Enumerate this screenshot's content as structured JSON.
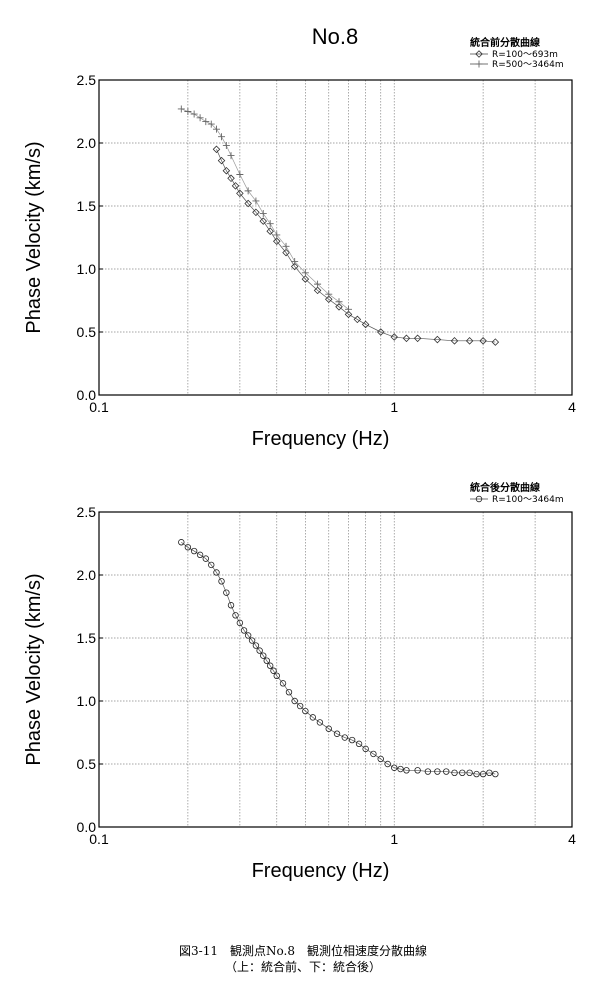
{
  "chart_data": [
    {
      "type": "scatter",
      "title": "No.8",
      "xlabel": "Frequency (Hz)",
      "ylabel": "Phase Velocity (km/s)",
      "xscale": "log",
      "xlim": [
        0.1,
        4
      ],
      "ylim": [
        0.0,
        2.5
      ],
      "xticks": [
        "0.1",
        "1",
        "4"
      ],
      "yticks": [
        "0.0",
        "0.5",
        "1.0",
        "1.5",
        "2.0",
        "2.5"
      ],
      "grid": true,
      "legend_title": "統合前分散曲線",
      "legend_position": "top-right",
      "series": [
        {
          "name": "R=100～693m",
          "marker": "diamond",
          "x": [
            0.25,
            0.26,
            0.27,
            0.28,
            0.29,
            0.3,
            0.32,
            0.34,
            0.36,
            0.38,
            0.4,
            0.43,
            0.46,
            0.5,
            0.55,
            0.6,
            0.65,
            0.7,
            0.75,
            0.8,
            0.9,
            1.0,
            1.1,
            1.2,
            1.4,
            1.6,
            1.8,
            2.0,
            2.2
          ],
          "y": [
            1.95,
            1.86,
            1.78,
            1.72,
            1.66,
            1.6,
            1.52,
            1.45,
            1.38,
            1.3,
            1.22,
            1.13,
            1.02,
            0.92,
            0.83,
            0.76,
            0.7,
            0.64,
            0.6,
            0.56,
            0.5,
            0.46,
            0.45,
            0.45,
            0.44,
            0.43,
            0.43,
            0.43,
            0.42
          ]
        },
        {
          "name": "R=500～3464m",
          "marker": "plus",
          "x": [
            0.19,
            0.2,
            0.21,
            0.22,
            0.23,
            0.24,
            0.25,
            0.26,
            0.27,
            0.28,
            0.3,
            0.32,
            0.34,
            0.36,
            0.38,
            0.4,
            0.43,
            0.46,
            0.5,
            0.55,
            0.6,
            0.65,
            0.7
          ],
          "y": [
            2.27,
            2.25,
            2.23,
            2.2,
            2.17,
            2.15,
            2.11,
            2.05,
            1.98,
            1.9,
            1.75,
            1.62,
            1.54,
            1.44,
            1.36,
            1.27,
            1.18,
            1.06,
            0.97,
            0.88,
            0.8,
            0.74,
            0.68
          ]
        }
      ]
    },
    {
      "type": "scatter",
      "title": "",
      "xlabel": "Frequency (Hz)",
      "ylabel": "Phase Velocity (km/s)",
      "xscale": "log",
      "xlim": [
        0.1,
        4
      ],
      "ylim": [
        0.0,
        2.5
      ],
      "xticks": [
        "0.1",
        "1",
        "4"
      ],
      "yticks": [
        "0.0",
        "0.5",
        "1.0",
        "1.5",
        "2.0",
        "2.5"
      ],
      "grid": true,
      "legend_title": "統合後分散曲線",
      "legend_position": "top-right",
      "series": [
        {
          "name": "R=100～3464m",
          "marker": "circle",
          "x": [
            0.19,
            0.2,
            0.21,
            0.22,
            0.23,
            0.24,
            0.25,
            0.26,
            0.27,
            0.28,
            0.29,
            0.3,
            0.31,
            0.32,
            0.33,
            0.34,
            0.35,
            0.36,
            0.37,
            0.38,
            0.39,
            0.4,
            0.42,
            0.44,
            0.46,
            0.48,
            0.5,
            0.53,
            0.56,
            0.6,
            0.64,
            0.68,
            0.72,
            0.76,
            0.8,
            0.85,
            0.9,
            0.95,
            1.0,
            1.05,
            1.1,
            1.2,
            1.3,
            1.4,
            1.5,
            1.6,
            1.7,
            1.8,
            1.9,
            2.0,
            2.1,
            2.2
          ],
          "y": [
            2.26,
            2.22,
            2.19,
            2.16,
            2.13,
            2.08,
            2.02,
            1.95,
            1.86,
            1.76,
            1.68,
            1.62,
            1.56,
            1.52,
            1.48,
            1.44,
            1.4,
            1.36,
            1.32,
            1.28,
            1.24,
            1.2,
            1.14,
            1.07,
            1.0,
            0.96,
            0.92,
            0.87,
            0.83,
            0.78,
            0.74,
            0.71,
            0.69,
            0.66,
            0.62,
            0.58,
            0.54,
            0.5,
            0.47,
            0.46,
            0.45,
            0.45,
            0.44,
            0.44,
            0.44,
            0.43,
            0.43,
            0.43,
            0.42,
            0.42,
            0.43,
            0.42
          ]
        }
      ]
    }
  ],
  "caption": {
    "line1": "図3-11　観測点No.8　観測位相速度分散曲線",
    "line2": "（上：統合前、下：統合後）"
  }
}
